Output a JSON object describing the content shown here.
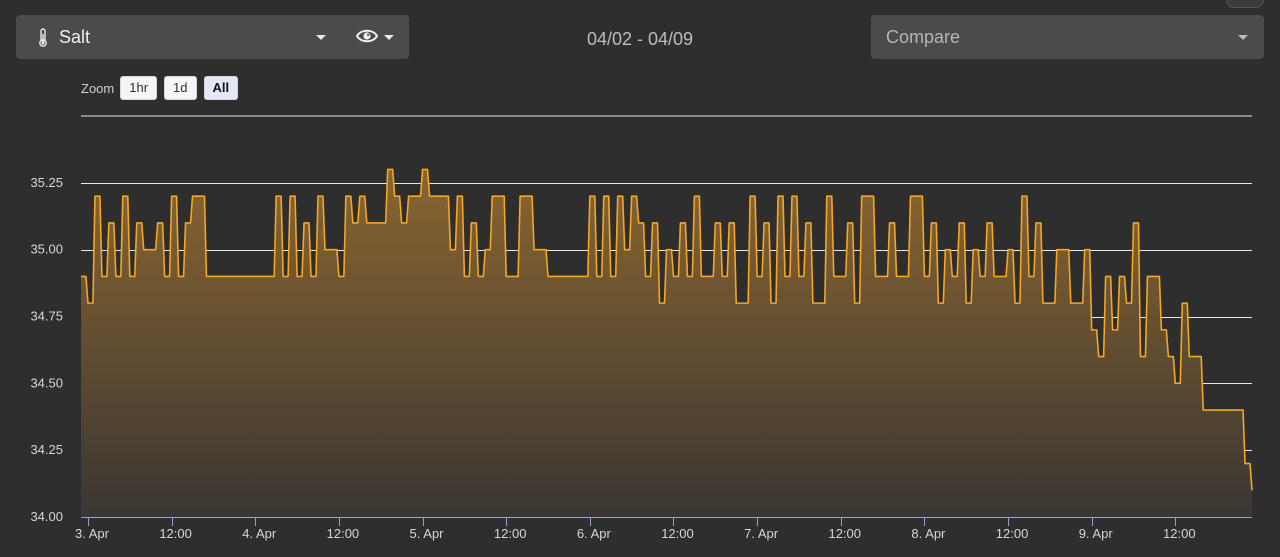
{
  "header": {
    "sensor_label": "Salt",
    "date_range": "04/02 - 04/09",
    "compare_label": "Compare",
    "icons": {
      "sensor": "thermometer-icon",
      "visibility": "eye-icon",
      "caret": "caret-down-icon"
    }
  },
  "zoom": {
    "label": "Zoom",
    "buttons": [
      "1hr",
      "1d",
      "All"
    ],
    "active": "All"
  },
  "colors": {
    "background": "#2e2e2e",
    "line": "#f5a623",
    "fill_top": "#8a6530",
    "grid": "#e8e8e8"
  },
  "chart_data": {
    "type": "area",
    "title": "",
    "xlabel": "",
    "ylabel": "",
    "series": [
      {
        "points": [
          [
            "2024-04-02T23:00",
            34.9
          ],
          [
            "2024-04-03T00:00",
            34.8
          ],
          [
            "2024-04-03T01:00",
            35.2
          ],
          [
            "2024-04-03T02:00",
            34.9
          ],
          [
            "2024-04-03T03:00",
            35.1
          ],
          [
            "2024-04-03T04:00",
            34.9
          ],
          [
            "2024-04-03T05:00",
            35.2
          ],
          [
            "2024-04-03T06:00",
            34.9
          ],
          [
            "2024-04-03T07:00",
            35.1
          ],
          [
            "2024-04-03T08:00",
            35.0
          ],
          [
            "2024-04-03T10:00",
            35.1
          ],
          [
            "2024-04-03T11:00",
            34.9
          ],
          [
            "2024-04-03T12:00",
            35.2
          ],
          [
            "2024-04-03T13:00",
            34.9
          ],
          [
            "2024-04-03T14:00",
            35.1
          ],
          [
            "2024-04-03T15:00",
            35.2
          ],
          [
            "2024-04-03T17:00",
            34.9
          ],
          [
            "2024-04-03T20:00",
            34.9
          ],
          [
            "2024-04-04T02:00",
            34.9
          ],
          [
            "2024-04-04T03:00",
            35.2
          ],
          [
            "2024-04-04T04:00",
            34.9
          ],
          [
            "2024-04-04T05:00",
            35.2
          ],
          [
            "2024-04-04T06:00",
            34.9
          ],
          [
            "2024-04-04T07:00",
            35.1
          ],
          [
            "2024-04-04T08:00",
            34.9
          ],
          [
            "2024-04-04T09:00",
            35.2
          ],
          [
            "2024-04-04T10:00",
            35.0
          ],
          [
            "2024-04-04T12:00",
            34.9
          ],
          [
            "2024-04-04T13:00",
            35.2
          ],
          [
            "2024-04-04T14:00",
            35.1
          ],
          [
            "2024-04-04T15:00",
            35.2
          ],
          [
            "2024-04-04T16:00",
            35.1
          ],
          [
            "2024-04-04T18:00",
            35.1
          ],
          [
            "2024-04-04T19:00",
            35.3
          ],
          [
            "2024-04-04T20:00",
            35.2
          ],
          [
            "2024-04-04T21:00",
            35.1
          ],
          [
            "2024-04-04T22:00",
            35.2
          ],
          [
            "2024-04-05T00:00",
            35.3
          ],
          [
            "2024-04-05T01:00",
            35.2
          ],
          [
            "2024-04-05T03:00",
            35.2
          ],
          [
            "2024-04-05T04:00",
            35.0
          ],
          [
            "2024-04-05T05:00",
            35.2
          ],
          [
            "2024-04-05T06:00",
            34.9
          ],
          [
            "2024-04-05T07:00",
            35.1
          ],
          [
            "2024-04-05T08:00",
            34.9
          ],
          [
            "2024-04-05T09:00",
            35.0
          ],
          [
            "2024-04-05T10:00",
            35.2
          ],
          [
            "2024-04-05T12:00",
            34.9
          ],
          [
            "2024-04-05T14:00",
            35.2
          ],
          [
            "2024-04-05T16:00",
            35.0
          ],
          [
            "2024-04-05T18:00",
            34.9
          ],
          [
            "2024-04-05T23:00",
            34.9
          ],
          [
            "2024-04-06T00:00",
            35.2
          ],
          [
            "2024-04-06T01:00",
            34.9
          ],
          [
            "2024-04-06T02:00",
            35.2
          ],
          [
            "2024-04-06T03:00",
            34.9
          ],
          [
            "2024-04-06T04:00",
            35.2
          ],
          [
            "2024-04-06T05:00",
            35.0
          ],
          [
            "2024-04-06T06:00",
            35.2
          ],
          [
            "2024-04-06T07:00",
            35.1
          ],
          [
            "2024-04-06T08:00",
            34.9
          ],
          [
            "2024-04-06T09:00",
            35.1
          ],
          [
            "2024-04-06T10:00",
            34.8
          ],
          [
            "2024-04-06T11:00",
            35.0
          ],
          [
            "2024-04-06T12:00",
            34.9
          ],
          [
            "2024-04-06T13:00",
            35.1
          ],
          [
            "2024-04-06T14:00",
            34.9
          ],
          [
            "2024-04-06T15:00",
            35.2
          ],
          [
            "2024-04-06T16:00",
            34.9
          ],
          [
            "2024-04-06T18:00",
            35.1
          ],
          [
            "2024-04-06T19:00",
            34.9
          ],
          [
            "2024-04-06T20:00",
            35.1
          ],
          [
            "2024-04-06T21:00",
            34.8
          ],
          [
            "2024-04-06T23:00",
            35.2
          ],
          [
            "2024-04-07T00:00",
            34.9
          ],
          [
            "2024-04-07T01:00",
            35.1
          ],
          [
            "2024-04-07T02:00",
            34.8
          ],
          [
            "2024-04-07T03:00",
            35.2
          ],
          [
            "2024-04-07T04:00",
            34.9
          ],
          [
            "2024-04-07T05:00",
            35.2
          ],
          [
            "2024-04-07T06:00",
            34.9
          ],
          [
            "2024-04-07T07:00",
            35.1
          ],
          [
            "2024-04-07T08:00",
            34.8
          ],
          [
            "2024-04-07T10:00",
            35.2
          ],
          [
            "2024-04-07T11:00",
            34.9
          ],
          [
            "2024-04-07T13:00",
            35.1
          ],
          [
            "2024-04-07T14:00",
            34.8
          ],
          [
            "2024-04-07T15:00",
            35.2
          ],
          [
            "2024-04-07T17:00",
            34.9
          ],
          [
            "2024-04-07T19:00",
            35.1
          ],
          [
            "2024-04-07T20:00",
            34.9
          ],
          [
            "2024-04-07T22:00",
            35.2
          ],
          [
            "2024-04-08T00:00",
            34.9
          ],
          [
            "2024-04-08T01:00",
            35.1
          ],
          [
            "2024-04-08T02:00",
            34.8
          ],
          [
            "2024-04-08T03:00",
            35.0
          ],
          [
            "2024-04-08T04:00",
            34.9
          ],
          [
            "2024-04-08T05:00",
            35.1
          ],
          [
            "2024-04-08T06:00",
            34.8
          ],
          [
            "2024-04-08T07:00",
            35.0
          ],
          [
            "2024-04-08T08:00",
            34.9
          ],
          [
            "2024-04-08T09:00",
            35.1
          ],
          [
            "2024-04-08T10:00",
            34.9
          ],
          [
            "2024-04-08T12:00",
            35.0
          ],
          [
            "2024-04-08T13:00",
            34.8
          ],
          [
            "2024-04-08T14:00",
            35.2
          ],
          [
            "2024-04-08T15:00",
            34.9
          ],
          [
            "2024-04-08T16:00",
            35.1
          ],
          [
            "2024-04-08T17:00",
            34.8
          ],
          [
            "2024-04-08T19:00",
            35.0
          ],
          [
            "2024-04-08T21:00",
            34.8
          ],
          [
            "2024-04-08T23:00",
            35.0
          ],
          [
            "2024-04-09T00:00",
            34.7
          ],
          [
            "2024-04-09T01:00",
            34.6
          ],
          [
            "2024-04-09T02:00",
            34.9
          ],
          [
            "2024-04-09T03:00",
            34.7
          ],
          [
            "2024-04-09T04:00",
            34.9
          ],
          [
            "2024-04-09T05:00",
            34.8
          ],
          [
            "2024-04-09T06:00",
            35.1
          ],
          [
            "2024-04-09T07:00",
            34.6
          ],
          [
            "2024-04-09T08:00",
            34.9
          ],
          [
            "2024-04-09T09:00",
            34.9
          ],
          [
            "2024-04-09T10:00",
            34.7
          ],
          [
            "2024-04-09T11:00",
            34.6
          ],
          [
            "2024-04-09T12:00",
            34.5
          ],
          [
            "2024-04-09T13:00",
            34.8
          ],
          [
            "2024-04-09T14:00",
            34.6
          ],
          [
            "2024-04-09T15:00",
            34.6
          ],
          [
            "2024-04-09T16:00",
            34.4
          ],
          [
            "2024-04-09T18:00",
            34.4
          ],
          [
            "2024-04-09T20:00",
            34.4
          ],
          [
            "2024-04-09T22:00",
            34.2
          ],
          [
            "2024-04-09T23:00",
            34.1
          ]
        ]
      }
    ],
    "xlim": [
      "2024-04-02T23:00",
      "2024-04-09T23:00"
    ],
    "ylim": [
      34.0,
      35.5
    ],
    "y_ticks": [
      "34.00",
      "34.25",
      "34.50",
      "34.75",
      "35.00",
      "35.25"
    ],
    "y_tick_values": [
      34.0,
      34.25,
      34.5,
      34.75,
      35.0,
      35.25
    ],
    "x_ticks": [
      {
        "t": "2024-04-03T00:00",
        "label": "3. Apr"
      },
      {
        "t": "2024-04-03T12:00",
        "label": "12:00"
      },
      {
        "t": "2024-04-04T00:00",
        "label": "4. Apr"
      },
      {
        "t": "2024-04-04T12:00",
        "label": "12:00"
      },
      {
        "t": "2024-04-05T00:00",
        "label": "5. Apr"
      },
      {
        "t": "2024-04-05T12:00",
        "label": "12:00"
      },
      {
        "t": "2024-04-06T00:00",
        "label": "6. Apr"
      },
      {
        "t": "2024-04-06T12:00",
        "label": "12:00"
      },
      {
        "t": "2024-04-07T00:00",
        "label": "7. Apr"
      },
      {
        "t": "2024-04-07T12:00",
        "label": "12:00"
      },
      {
        "t": "2024-04-08T00:00",
        "label": "8. Apr"
      },
      {
        "t": "2024-04-08T12:00",
        "label": "12:00"
      },
      {
        "t": "2024-04-09T00:00",
        "label": "9. Apr"
      },
      {
        "t": "2024-04-09T12:00",
        "label": "12:00"
      }
    ],
    "grid": true,
    "legend": "none"
  }
}
